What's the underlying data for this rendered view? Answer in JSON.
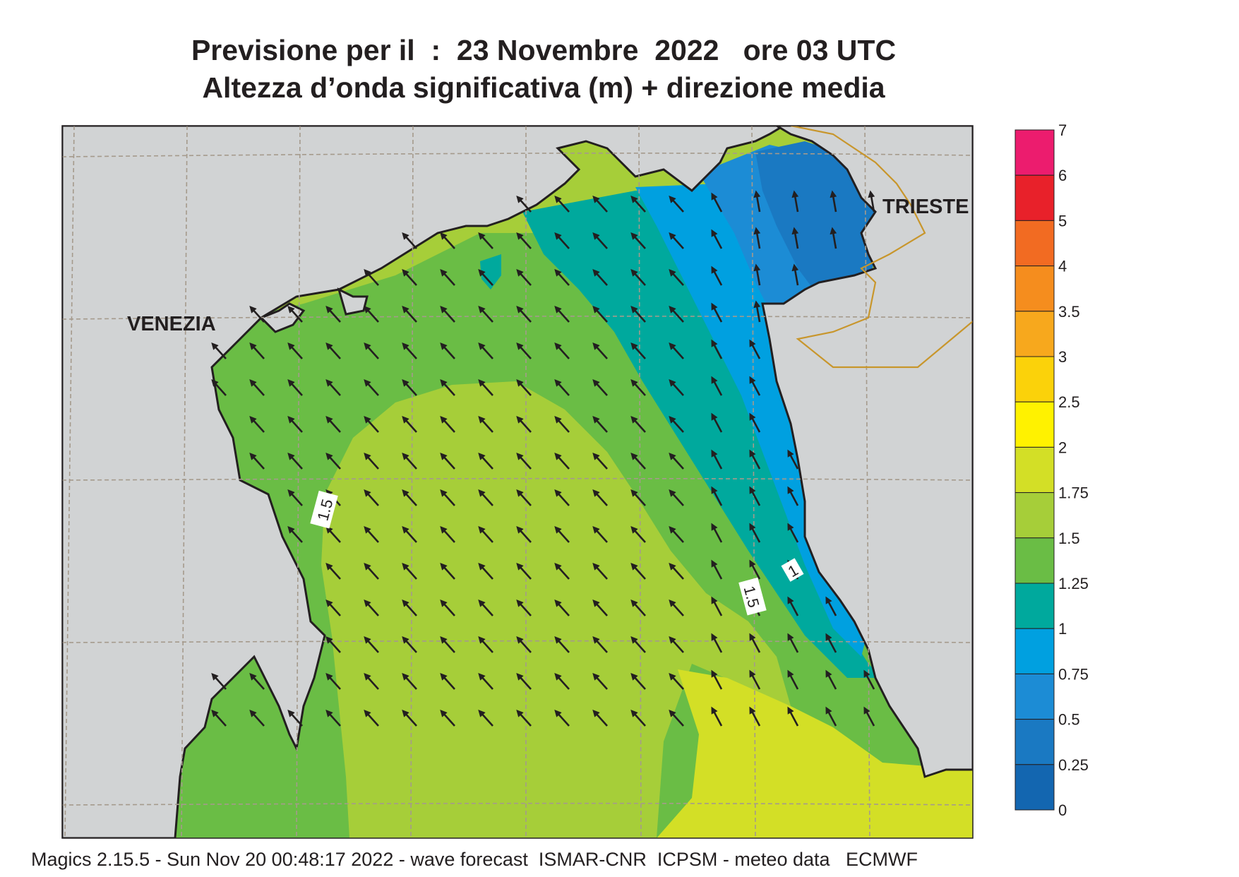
{
  "title": {
    "line1": "Previsione per il  :  23 Novembre  2022   ore 03 UTC",
    "line2": "Altezza d’onda significativa (m) + direzione media"
  },
  "city_labels": [
    "VENEZIA",
    "TRIESTE"
  ],
  "contour_labels": [
    "1.5",
    "1",
    "1.5"
  ],
  "colorbar": {
    "levels": [
      {
        "label": "7",
        "color": "#ffffff"
      },
      {
        "label": "6",
        "color": "#ec1c6e"
      },
      {
        "label": "5",
        "color": "#e8212a"
      },
      {
        "label": "4",
        "color": "#f26b22"
      },
      {
        "label": "3.5",
        "color": "#f58d1e"
      },
      {
        "label": "3",
        "color": "#f7a81d"
      },
      {
        "label": "2.5",
        "color": "#fbd20a"
      },
      {
        "label": "2",
        "color": "#fff200"
      },
      {
        "label": "1.75",
        "color": "#d3df26"
      },
      {
        "label": "1.5",
        "color": "#a6ce39"
      },
      {
        "label": "1.25",
        "color": "#6abd45"
      },
      {
        "label": "1",
        "color": "#00a99d"
      },
      {
        "label": "0.75",
        "color": "#00a0e0"
      },
      {
        "label": "0.5",
        "color": "#1c8cd5"
      },
      {
        "label": "0.25",
        "color": "#1a79c2"
      },
      {
        "label": "0",
        "color": "#1366b0"
      }
    ]
  },
  "colors": {
    "land": "#d1d3d4",
    "coast": "#231f20",
    "grid": "#a59a8c",
    "border": "#c8962c"
  },
  "footer": "Magics 2.15.5 - Sun Nov 20 00:48:17 2022 - wave forecast  ISMAR-CNR  ICPSM - meteo data   ECMWF"
}
